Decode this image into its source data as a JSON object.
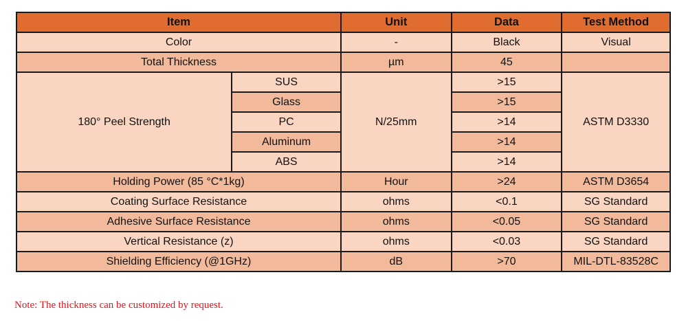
{
  "headers": {
    "item": "Item",
    "unit": "Unit",
    "data": "Data",
    "method": "Test Method"
  },
  "rows": [
    {
      "item": "Color",
      "unit": "-",
      "data": "Black",
      "method": "Visual"
    },
    {
      "item": "Total Thickness",
      "unit": "µm",
      "data": "45",
      "method": ""
    }
  ],
  "peel": {
    "item": "180° Peel Strength",
    "unit": "N/25mm",
    "method": "ASTM D3330",
    "subs": [
      {
        "name": "SUS",
        "data": ">15"
      },
      {
        "name": "Glass",
        "data": ">15"
      },
      {
        "name": "PC",
        "data": ">14"
      },
      {
        "name": "Aluminum",
        "data": ">14"
      },
      {
        "name": "ABS",
        "data": ">14"
      }
    ]
  },
  "rows2": [
    {
      "item": "Holding Power (85 °C*1kg)",
      "unit": "Hour",
      "data": ">24",
      "method": "ASTM D3654"
    },
    {
      "item": "Coating Surface Resistance",
      "unit": "ohms",
      "data": "<0.1",
      "method": "SG Standard"
    },
    {
      "item": "Adhesive Surface Resistance",
      "unit": "ohms",
      "data": "<0.05",
      "method": "SG Standard"
    },
    {
      "item": "Vertical Resistance (z)",
      "unit": "ohms",
      "data": "<0.03",
      "method": "SG Standard"
    },
    {
      "item": "Shielding Efficiency (@1GHz)",
      "unit": "dB",
      "data": ">70",
      "method": "MIL-DTL-83528C"
    }
  ],
  "note": "Note: The thickness can be customized by request.",
  "colors": {
    "header": "#E06C30",
    "light": "#FAD5C1",
    "dark": "#F2BA9A",
    "note": "#e3151b"
  }
}
